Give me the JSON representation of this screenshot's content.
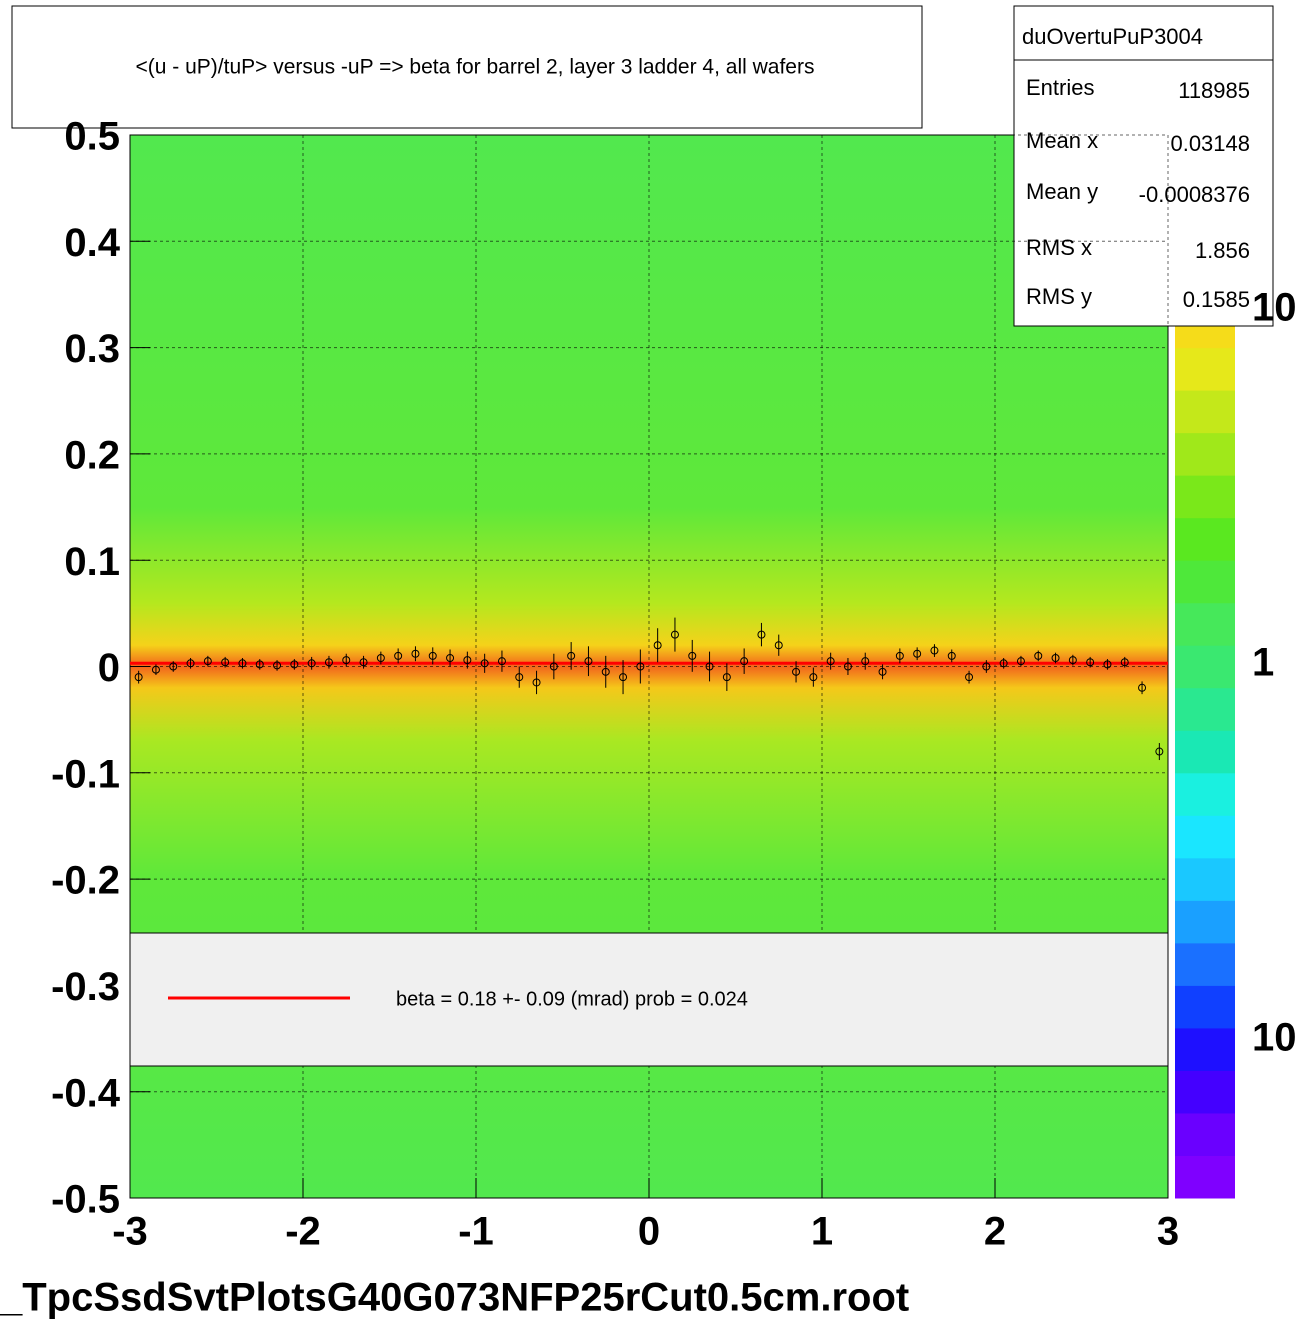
{
  "chart_data": {
    "type": "profile",
    "title": "<(u - uP)/tuP> versus  -uP => beta for barrel 2, layer 3 ladder 4, all wafers",
    "file_label": "_TpcSsdSvtPlotsG40G073NFP25rCut0.5cm.root",
    "stats": {
      "name": "duOvertuPuP3004",
      "rows": [
        {
          "label": "Entries",
          "value": 118985
        },
        {
          "label": "Mean x",
          "value": 0.03148
        },
        {
          "label": "Mean y",
          "value": -0.0008376
        },
        {
          "label": "RMS x",
          "value": 1.856
        },
        {
          "label": "RMS y",
          "value": 0.1585
        }
      ]
    },
    "colorbar_labels": [
      "10",
      "1",
      "10"
    ],
    "xlim": [
      -3,
      3
    ],
    "ylim": [
      -0.5,
      0.5
    ],
    "xticks": [
      -3,
      -2,
      -1,
      0,
      1,
      2,
      3
    ],
    "yticks": [
      -0.5,
      -0.4,
      -0.3,
      -0.2,
      -0.1,
      0,
      0.1,
      0.2,
      0.3,
      0.4,
      0.5
    ],
    "grid": true,
    "x": [
      -2.95,
      -2.85,
      -2.75,
      -2.65,
      -2.55,
      -2.45,
      -2.35,
      -2.25,
      -2.15,
      -2.05,
      -1.95,
      -1.85,
      -1.75,
      -1.65,
      -1.55,
      -1.45,
      -1.35,
      -1.25,
      -1.15,
      -1.05,
      -0.95,
      -0.85,
      -0.75,
      -0.65,
      -0.55,
      -0.45,
      -0.35,
      -0.25,
      -0.15,
      -0.05,
      0.05,
      0.15,
      0.25,
      0.35,
      0.45,
      0.55,
      0.65,
      0.75,
      0.85,
      0.95,
      1.05,
      1.15,
      1.25,
      1.35,
      1.45,
      1.55,
      1.65,
      1.75,
      1.85,
      1.95,
      2.05,
      2.15,
      2.25,
      2.35,
      2.45,
      2.55,
      2.65,
      2.75,
      2.85,
      2.95
    ],
    "values": [
      -0.01,
      -0.003,
      0.0,
      0.003,
      0.005,
      0.004,
      0.003,
      0.002,
      0.001,
      0.002,
      0.003,
      0.004,
      0.006,
      0.004,
      0.008,
      0.01,
      0.012,
      0.01,
      0.008,
      0.006,
      0.003,
      0.005,
      -0.01,
      -0.015,
      0.0,
      0.01,
      0.005,
      -0.005,
      -0.01,
      0.0,
      0.02,
      0.03,
      0.01,
      0.0,
      -0.01,
      0.005,
      0.03,
      0.02,
      -0.005,
      -0.01,
      0.005,
      0.0,
      0.005,
      -0.005,
      0.01,
      0.012,
      0.015,
      0.01,
      -0.01,
      0.0,
      0.003,
      0.005,
      0.01,
      0.008,
      0.006,
      0.004,
      0.002,
      0.004,
      -0.02,
      -0.08
    ],
    "errors": [
      0.006,
      0.005,
      0.005,
      0.005,
      0.005,
      0.005,
      0.005,
      0.005,
      0.005,
      0.005,
      0.006,
      0.006,
      0.006,
      0.006,
      0.006,
      0.007,
      0.007,
      0.008,
      0.008,
      0.008,
      0.009,
      0.01,
      0.01,
      0.011,
      0.012,
      0.013,
      0.014,
      0.015,
      0.016,
      0.016,
      0.016,
      0.016,
      0.015,
      0.014,
      0.013,
      0.012,
      0.011,
      0.01,
      0.01,
      0.009,
      0.008,
      0.008,
      0.008,
      0.007,
      0.007,
      0.006,
      0.006,
      0.006,
      0.006,
      0.006,
      0.005,
      0.005,
      0.005,
      0.005,
      0.005,
      0.005,
      0.005,
      0.005,
      0.006,
      0.008
    ],
    "marker_color": "#000000",
    "fit": {
      "name": "beta =    0.18 +-  0.09 (mrad) prob = 0.024",
      "color": "#ff0000",
      "x": [
        -3,
        3
      ],
      "values": [
        0.003,
        0.003
      ]
    }
  }
}
